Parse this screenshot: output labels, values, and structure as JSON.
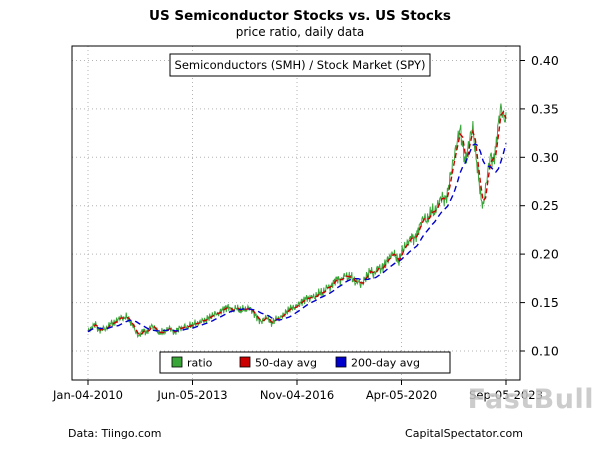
{
  "header": {
    "title": "US Semiconductor Stocks vs. US Stocks",
    "subtitle": "price ratio, daily data"
  },
  "footer": {
    "left": "Data: Tiingo.com",
    "right": "CapitalSpectator.com"
  },
  "watermark": "FastBull",
  "chart_data": {
    "type": "line",
    "title": "US Semiconductor Stocks vs. US Stocks",
    "subtitle": "price ratio, daily data",
    "annotation": "Semiconductors (SMH) / Stock Market (SPY)",
    "x_unit": "month",
    "x_range": [
      "2010-01",
      "2023-09"
    ],
    "x_ticks": [
      {
        "label": "Jan-04-2010",
        "index": 0
      },
      {
        "label": "Jun-05-2013",
        "index": 41
      },
      {
        "label": "Nov-04-2016",
        "index": 82
      },
      {
        "label": "Apr-05-2020",
        "index": 123
      },
      {
        "label": "Sep-05-2023",
        "index": 164
      }
    ],
    "y_ticks": [
      0.1,
      0.15,
      0.2,
      0.25,
      0.3,
      0.35,
      0.4
    ],
    "ylim": [
      0.07,
      0.415
    ],
    "grid": true,
    "legend_position": "bottom-center",
    "series": [
      {
        "name": "ratio",
        "color": "#3aa63a",
        "style": "solid",
        "values": [
          0.12,
          0.123,
          0.126,
          0.128,
          0.122,
          0.121,
          0.124,
          0.122,
          0.126,
          0.129,
          0.128,
          0.131,
          0.133,
          0.135,
          0.133,
          0.136,
          0.132,
          0.128,
          0.125,
          0.118,
          0.115,
          0.12,
          0.121,
          0.119,
          0.123,
          0.126,
          0.124,
          0.121,
          0.118,
          0.12,
          0.119,
          0.122,
          0.124,
          0.121,
          0.119,
          0.122,
          0.124,
          0.123,
          0.126,
          0.124,
          0.127,
          0.126,
          0.129,
          0.128,
          0.13,
          0.132,
          0.131,
          0.134,
          0.135,
          0.137,
          0.139,
          0.138,
          0.141,
          0.143,
          0.144,
          0.146,
          0.143,
          0.141,
          0.145,
          0.143,
          0.141,
          0.144,
          0.142,
          0.145,
          0.143,
          0.139,
          0.136,
          0.132,
          0.13,
          0.133,
          0.135,
          0.132,
          0.128,
          0.131,
          0.134,
          0.133,
          0.136,
          0.138,
          0.141,
          0.143,
          0.145,
          0.144,
          0.147,
          0.149,
          0.151,
          0.153,
          0.155,
          0.154,
          0.157,
          0.155,
          0.158,
          0.161,
          0.159,
          0.163,
          0.167,
          0.165,
          0.17,
          0.173,
          0.175,
          0.172,
          0.176,
          0.179,
          0.175,
          0.178,
          0.174,
          0.17,
          0.173,
          0.168,
          0.172,
          0.176,
          0.18,
          0.184,
          0.178,
          0.183,
          0.187,
          0.184,
          0.188,
          0.192,
          0.196,
          0.199,
          0.201,
          0.196,
          0.192,
          0.202,
          0.207,
          0.21,
          0.214,
          0.219,
          0.215,
          0.221,
          0.228,
          0.235,
          0.238,
          0.234,
          0.24,
          0.246,
          0.242,
          0.25,
          0.255,
          0.26,
          0.255,
          0.262,
          0.278,
          0.292,
          0.305,
          0.318,
          0.33,
          0.312,
          0.295,
          0.308,
          0.322,
          0.331,
          0.305,
          0.285,
          0.262,
          0.248,
          0.268,
          0.288,
          0.302,
          0.295,
          0.31,
          0.335,
          0.352,
          0.342,
          0.338
        ]
      },
      {
        "name": "50-day avg",
        "color": "#cc0000",
        "style": "dashed",
        "derived": "rolling_mean_of_ratio",
        "window_months": 2
      },
      {
        "name": "200-day avg",
        "color": "#0000cd",
        "style": "dashed",
        "derived": "rolling_mean_of_ratio",
        "window_months": 9
      }
    ]
  }
}
